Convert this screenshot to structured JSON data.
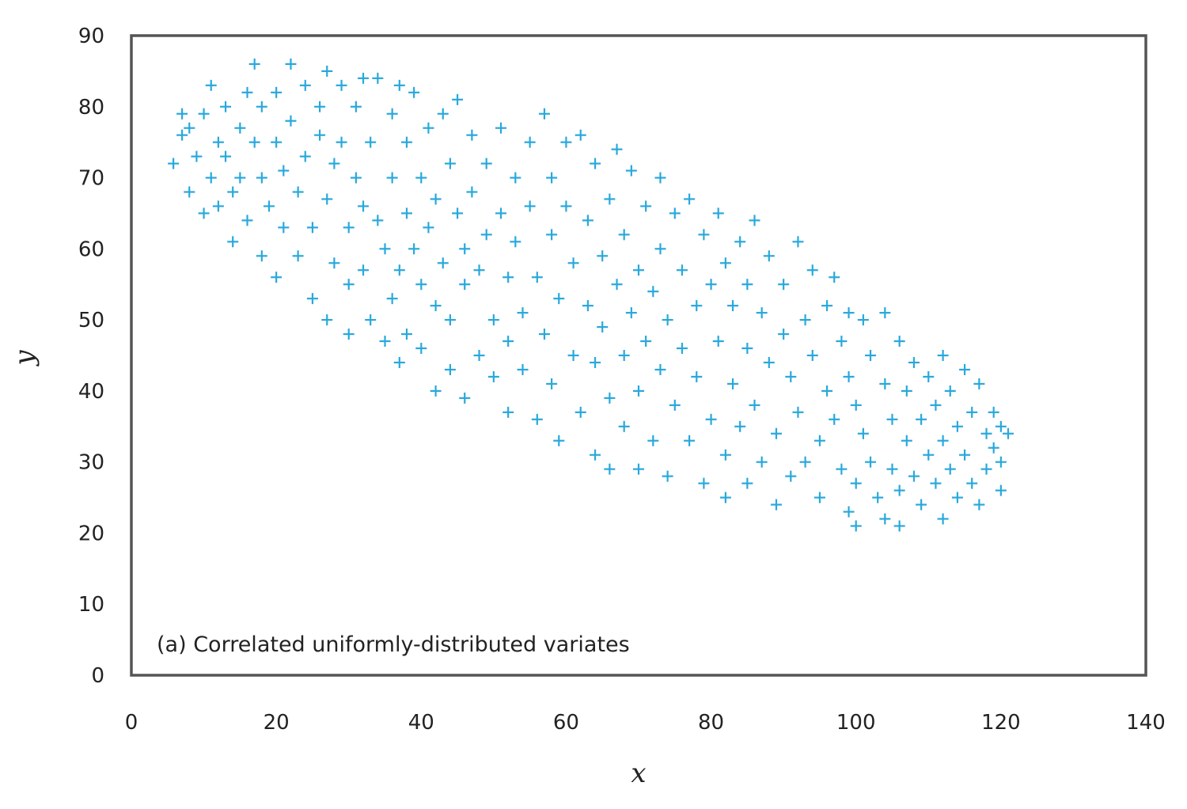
{
  "chart_data": {
    "type": "scatter",
    "title": "",
    "xlabel": "x",
    "ylabel": "y",
    "xlim": [
      0,
      140
    ],
    "ylim": [
      0,
      90
    ],
    "xticks": [
      0,
      20,
      40,
      60,
      80,
      100,
      120,
      140
    ],
    "yticks": [
      0,
      10,
      20,
      30,
      40,
      50,
      60,
      70,
      80,
      90
    ],
    "grid": false,
    "marker": "plus",
    "annotation": "(a) Correlated uniformly-distributed variates",
    "colors": {
      "marker": "#29a8dc",
      "frame": "#555555",
      "text": "#222222"
    },
    "series": [
      {
        "points": [
          [
            5.8,
            72
          ],
          [
            7,
            79
          ],
          [
            7,
            76
          ],
          [
            8,
            68
          ],
          [
            8,
            77
          ],
          [
            9,
            73
          ],
          [
            10,
            79
          ],
          [
            10,
            65
          ],
          [
            11,
            83
          ],
          [
            11,
            70
          ],
          [
            12,
            75
          ],
          [
            12,
            66
          ],
          [
            13,
            80
          ],
          [
            13,
            73
          ],
          [
            14,
            68
          ],
          [
            14,
            61
          ],
          [
            15,
            77
          ],
          [
            15,
            70
          ],
          [
            16,
            82
          ],
          [
            16,
            64
          ],
          [
            17,
            86
          ],
          [
            17,
            75
          ],
          [
            18,
            80
          ],
          [
            18,
            70
          ],
          [
            18,
            59
          ],
          [
            19,
            66
          ],
          [
            20,
            82
          ],
          [
            20,
            75
          ],
          [
            20,
            56
          ],
          [
            21,
            71
          ],
          [
            21,
            63
          ],
          [
            22,
            86
          ],
          [
            22,
            78
          ],
          [
            23,
            68
          ],
          [
            23,
            59
          ],
          [
            24,
            83
          ],
          [
            24,
            73
          ],
          [
            25,
            63
          ],
          [
            25,
            53
          ],
          [
            26,
            80
          ],
          [
            26,
            76
          ],
          [
            27,
            85
          ],
          [
            27,
            67
          ],
          [
            27,
            50
          ],
          [
            28,
            72
          ],
          [
            28,
            58
          ],
          [
            29,
            83
          ],
          [
            29,
            75
          ],
          [
            30,
            63
          ],
          [
            30,
            55
          ],
          [
            30,
            48
          ],
          [
            31,
            80
          ],
          [
            31,
            70
          ],
          [
            32,
            84
          ],
          [
            32,
            66
          ],
          [
            32,
            57
          ],
          [
            33,
            75
          ],
          [
            33,
            50
          ],
          [
            34,
            84
          ],
          [
            34,
            64
          ],
          [
            35,
            60
          ],
          [
            35,
            47
          ],
          [
            36,
            79
          ],
          [
            36,
            70
          ],
          [
            36,
            53
          ],
          [
            37,
            83
          ],
          [
            37,
            57
          ],
          [
            37,
            44
          ],
          [
            38,
            75
          ],
          [
            38,
            65
          ],
          [
            38,
            48
          ],
          [
            39,
            82
          ],
          [
            39,
            60
          ],
          [
            40,
            70
          ],
          [
            40,
            55
          ],
          [
            40,
            46
          ],
          [
            41,
            77
          ],
          [
            41,
            63
          ],
          [
            42,
            67
          ],
          [
            42,
            52
          ],
          [
            42,
            40
          ],
          [
            43,
            79
          ],
          [
            43,
            58
          ],
          [
            44,
            72
          ],
          [
            44,
            50
          ],
          [
            44,
            43
          ],
          [
            45,
            81
          ],
          [
            45,
            65
          ],
          [
            46,
            60
          ],
          [
            46,
            55
          ],
          [
            46,
            39
          ],
          [
            47,
            76
          ],
          [
            47,
            68
          ],
          [
            48,
            57
          ],
          [
            48,
            45
          ],
          [
            49,
            72
          ],
          [
            49,
            62
          ],
          [
            50,
            50
          ],
          [
            50,
            42
          ],
          [
            51,
            77
          ],
          [
            51,
            65
          ],
          [
            52,
            56
          ],
          [
            52,
            47
          ],
          [
            52,
            37
          ],
          [
            53,
            70
          ],
          [
            53,
            61
          ],
          [
            54,
            51
          ],
          [
            54,
            43
          ],
          [
            55,
            75
          ],
          [
            55,
            66
          ],
          [
            56,
            56
          ],
          [
            56,
            36
          ],
          [
            57,
            79
          ],
          [
            57,
            48
          ],
          [
            58,
            70
          ],
          [
            58,
            62
          ],
          [
            58,
            41
          ],
          [
            59,
            53
          ],
          [
            59,
            33
          ],
          [
            60,
            75
          ],
          [
            60,
            66
          ],
          [
            61,
            58
          ],
          [
            61,
            45
          ],
          [
            62,
            76
          ],
          [
            62,
            37
          ],
          [
            63,
            64
          ],
          [
            63,
            52
          ],
          [
            64,
            72
          ],
          [
            64,
            44
          ],
          [
            64,
            31
          ],
          [
            65,
            59
          ],
          [
            65,
            49
          ],
          [
            66,
            67
          ],
          [
            66,
            39
          ],
          [
            66,
            29
          ],
          [
            67,
            74
          ],
          [
            67,
            55
          ],
          [
            68,
            62
          ],
          [
            68,
            45
          ],
          [
            68,
            35
          ],
          [
            69,
            71
          ],
          [
            69,
            51
          ],
          [
            70,
            57
          ],
          [
            70,
            40
          ],
          [
            70,
            29
          ],
          [
            71,
            66
          ],
          [
            71,
            47
          ],
          [
            72,
            54
          ],
          [
            72,
            33
          ],
          [
            73,
            70
          ],
          [
            73,
            60
          ],
          [
            73,
            43
          ],
          [
            74,
            50
          ],
          [
            74,
            28
          ],
          [
            75,
            65
          ],
          [
            75,
            38
          ],
          [
            76,
            57
          ],
          [
            76,
            46
          ],
          [
            77,
            33
          ],
          [
            77,
            67
          ],
          [
            78,
            52
          ],
          [
            78,
            42
          ],
          [
            79,
            62
          ],
          [
            79,
            27
          ],
          [
            80,
            55
          ],
          [
            80,
            36
          ],
          [
            81,
            65
          ],
          [
            81,
            47
          ],
          [
            82,
            58
          ],
          [
            82,
            31
          ],
          [
            82,
            25
          ],
          [
            83,
            52
          ],
          [
            83,
            41
          ],
          [
            84,
            61
          ],
          [
            84,
            35
          ],
          [
            85,
            55
          ],
          [
            85,
            46
          ],
          [
            85,
            27
          ],
          [
            86,
            64
          ],
          [
            86,
            38
          ],
          [
            87,
            51
          ],
          [
            87,
            30
          ],
          [
            88,
            59
          ],
          [
            88,
            44
          ],
          [
            89,
            34
          ],
          [
            89,
            24
          ],
          [
            90,
            55
          ],
          [
            90,
            48
          ],
          [
            91,
            42
          ],
          [
            91,
            28
          ],
          [
            92,
            61
          ],
          [
            92,
            37
          ],
          [
            93,
            50
          ],
          [
            93,
            30
          ],
          [
            94,
            57
          ],
          [
            94,
            45
          ],
          [
            95,
            33
          ],
          [
            95,
            25
          ],
          [
            96,
            52
          ],
          [
            96,
            40
          ],
          [
            97,
            56
          ],
          [
            97,
            36
          ],
          [
            98,
            47
          ],
          [
            98,
            29
          ],
          [
            99,
            51
          ],
          [
            99,
            42
          ],
          [
            99,
            23
          ],
          [
            100,
            38
          ],
          [
            100,
            27
          ],
          [
            100,
            21
          ],
          [
            101,
            50
          ],
          [
            101,
            34
          ],
          [
            102,
            45
          ],
          [
            102,
            30
          ],
          [
            103,
            25
          ],
          [
            104,
            51
          ],
          [
            104,
            41
          ],
          [
            104,
            22
          ],
          [
            105,
            36
          ],
          [
            105,
            29
          ],
          [
            106,
            47
          ],
          [
            106,
            26
          ],
          [
            106,
            21
          ],
          [
            107,
            40
          ],
          [
            107,
            33
          ],
          [
            108,
            44
          ],
          [
            108,
            28
          ],
          [
            109,
            36
          ],
          [
            109,
            24
          ],
          [
            110,
            42
          ],
          [
            110,
            31
          ],
          [
            111,
            38
          ],
          [
            111,
            27
          ],
          [
            112,
            45
          ],
          [
            112,
            33
          ],
          [
            112,
            22
          ],
          [
            113,
            40
          ],
          [
            113,
            29
          ],
          [
            114,
            35
          ],
          [
            114,
            25
          ],
          [
            115,
            43
          ],
          [
            115,
            31
          ],
          [
            116,
            37
          ],
          [
            116,
            27
          ],
          [
            117,
            41
          ],
          [
            117,
            24
          ],
          [
            118,
            34
          ],
          [
            118,
            29
          ],
          [
            119,
            37
          ],
          [
            119,
            32
          ],
          [
            120,
            35
          ],
          [
            120,
            30
          ],
          [
            120,
            26
          ],
          [
            121,
            34
          ]
        ]
      }
    ]
  }
}
